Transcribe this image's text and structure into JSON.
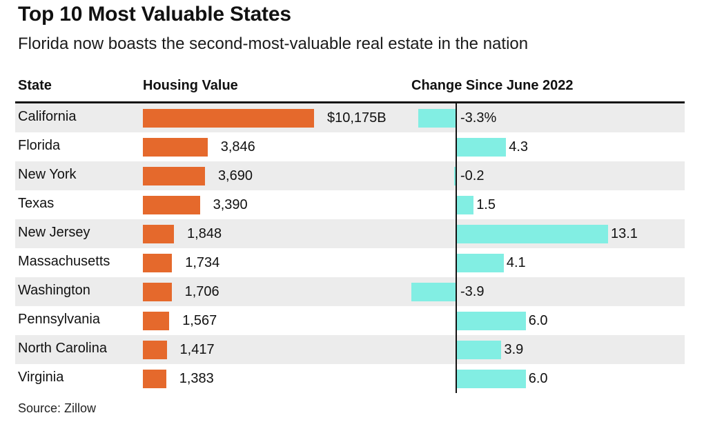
{
  "title": "Top 10 Most Valuable States",
  "subtitle": "Florida now boasts the second-most-valuable real estate in the nation",
  "headers": {
    "state": "State",
    "value": "Housing Value",
    "change": "Change Since June 2022"
  },
  "source": "Source: Zillow",
  "colors": {
    "value_bar": "#e5692c",
    "change_bar": "#82eee3",
    "row_shade": "#ececec"
  },
  "chart_data": {
    "type": "bar",
    "categories": [
      "California",
      "Florida",
      "New York",
      "Texas",
      "New Jersey",
      "Massachusetts",
      "Washington",
      "Pennsylvania",
      "North Carolina",
      "Virginia"
    ],
    "series": [
      {
        "values": [
          10175,
          3846,
          3690,
          3390,
          1848,
          1734,
          1706,
          1567,
          1417,
          1383
        ],
        "labels": [
          "$10,175B",
          "3,846",
          "3,690",
          "3,390",
          "1,848",
          "1,734",
          "1,706",
          "1,567",
          "1,417",
          "1,383"
        ]
      },
      {
        "values": [
          -3.3,
          4.3,
          -0.2,
          1.5,
          13.1,
          4.1,
          -3.9,
          6.0,
          3.9,
          6.0
        ],
        "labels": [
          "-3.3%",
          "4.3",
          "-0.2",
          "1.5",
          "13.1",
          "4.1",
          "-3.9",
          "6.0",
          "3.9",
          "6.0"
        ]
      }
    ],
    "grid": false,
    "legend": "none"
  }
}
